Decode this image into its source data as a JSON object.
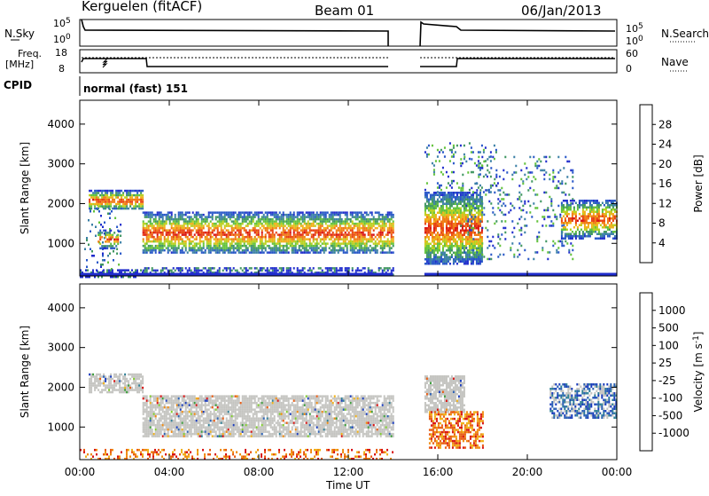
{
  "header": {
    "station": "Kerguelen (fitACF)",
    "beam": "Beam 01",
    "date": "06/Jan/2013"
  },
  "panels": {
    "nsky": {
      "label": "N.Sky",
      "left_ticks": [
        "10^5",
        "10^0"
      ],
      "right_ticks": [
        "10^5",
        "10^0"
      ],
      "right_label": "N.Search"
    },
    "freq": {
      "label": "Freq.",
      "unit": "[MHz]",
      "left_ticks": [
        "18",
        "8"
      ],
      "right_ticks": [
        "60",
        "0"
      ],
      "right_label": "Nave"
    },
    "cpid": {
      "label": "CPID",
      "value": "normal (fast) 151"
    }
  },
  "chart_data": [
    {
      "type": "heatmap",
      "name": "power",
      "xlabel": "",
      "ylabel": "Slant Range [km]",
      "x_ticks": [
        "00:00",
        "04:00",
        "08:00",
        "12:00",
        "16:00",
        "20:00",
        "00:00"
      ],
      "xlim_hours": [
        0,
        24
      ],
      "y_ticks": [
        1000,
        2000,
        3000,
        4000
      ],
      "ylim": [
        180,
        4600
      ],
      "colorbar": {
        "label": "Power [dB]",
        "ticks": [
          "4",
          "8",
          "12",
          "16",
          "20",
          "24",
          "28"
        ],
        "colors": [
          "#1f2ccc",
          "#2656c8",
          "#3a7fa6",
          "#3f9660",
          "#62c23a",
          "#b8d01c",
          "#f0b016",
          "#f07a12",
          "#e84010",
          "#d81010"
        ]
      },
      "regions": [
        {
          "t0": 0.2,
          "t1": 1.8,
          "r0": 300,
          "r1": 2000,
          "kind": "sparse",
          "level": 0.4
        },
        {
          "t0": 0.8,
          "t1": 1.7,
          "r0": 900,
          "r1": 1350,
          "kind": "echo",
          "level": 0.5
        },
        {
          "t0": 0.4,
          "t1": 2.8,
          "r0": 1850,
          "r1": 2350,
          "kind": "echo",
          "level": 0.8
        },
        {
          "t0": 2.8,
          "t1": 14.0,
          "r0": 750,
          "r1": 1800,
          "kind": "echo",
          "level": 0.75
        },
        {
          "t0": 2.8,
          "t1": 14.0,
          "r0": 180,
          "r1": 400,
          "kind": "ground",
          "level": 0.3
        },
        {
          "t0": 0,
          "t1": 2.8,
          "r0": 180,
          "r1": 350,
          "kind": "ground",
          "level": 0.2
        },
        {
          "t0": 15.4,
          "t1": 18.0,
          "r0": 500,
          "r1": 2300,
          "kind": "echo",
          "level": 0.8
        },
        {
          "t0": 15.4,
          "t1": 18.8,
          "r0": 2300,
          "r1": 3600,
          "kind": "sparse",
          "level": 0.35
        },
        {
          "t0": 17.0,
          "t1": 22.0,
          "r0": 600,
          "r1": 3200,
          "kind": "sparse",
          "level": 0.3
        },
        {
          "t0": 21.5,
          "t1": 24.0,
          "r0": 1150,
          "r1": 2100,
          "kind": "echo",
          "level": 0.65
        }
      ]
    },
    {
      "type": "heatmap",
      "name": "velocity",
      "xlabel": "Time UT",
      "ylabel": "Slant Range [km]",
      "x_ticks": [
        "00:00",
        "04:00",
        "08:00",
        "12:00",
        "16:00",
        "20:00",
        "00:00"
      ],
      "xlim_hours": [
        0,
        24
      ],
      "y_ticks": [
        1000,
        2000,
        3000,
        4000
      ],
      "ylim": [
        180,
        4600
      ],
      "colorbar": {
        "label": "Velocity [m s^-1]",
        "ticks": [
          "1000",
          "500",
          "100",
          "25",
          "-25",
          "-100",
          "-500",
          "-1000"
        ],
        "colors": [
          "#1a3cbc",
          "#2a60b4",
          "#2f7f96",
          "#3b9c3b",
          "#7fcc2c",
          "#c4c4c0",
          "#f0b016",
          "#f08a10",
          "#e85a10",
          "#d81010"
        ]
      },
      "regions": [
        {
          "t0": 0.4,
          "t1": 2.8,
          "r0": 1850,
          "r1": 2350,
          "kind": "gray",
          "level": 0.7
        },
        {
          "t0": 2.8,
          "t1": 14.0,
          "r0": 750,
          "r1": 1800,
          "kind": "gray",
          "level": 0.8
        },
        {
          "t0": 0,
          "t1": 14.0,
          "r0": 180,
          "r1": 450,
          "kind": "orange",
          "level": 0.3
        },
        {
          "t0": 15.4,
          "t1": 17.2,
          "r0": 1400,
          "r1": 2300,
          "kind": "gray",
          "level": 0.8
        },
        {
          "t0": 15.6,
          "t1": 18.0,
          "r0": 500,
          "r1": 1400,
          "kind": "orange",
          "level": 0.6
        },
        {
          "t0": 21.0,
          "t1": 24.0,
          "r0": 1250,
          "r1": 2100,
          "kind": "blue",
          "level": 0.65
        }
      ]
    }
  ]
}
